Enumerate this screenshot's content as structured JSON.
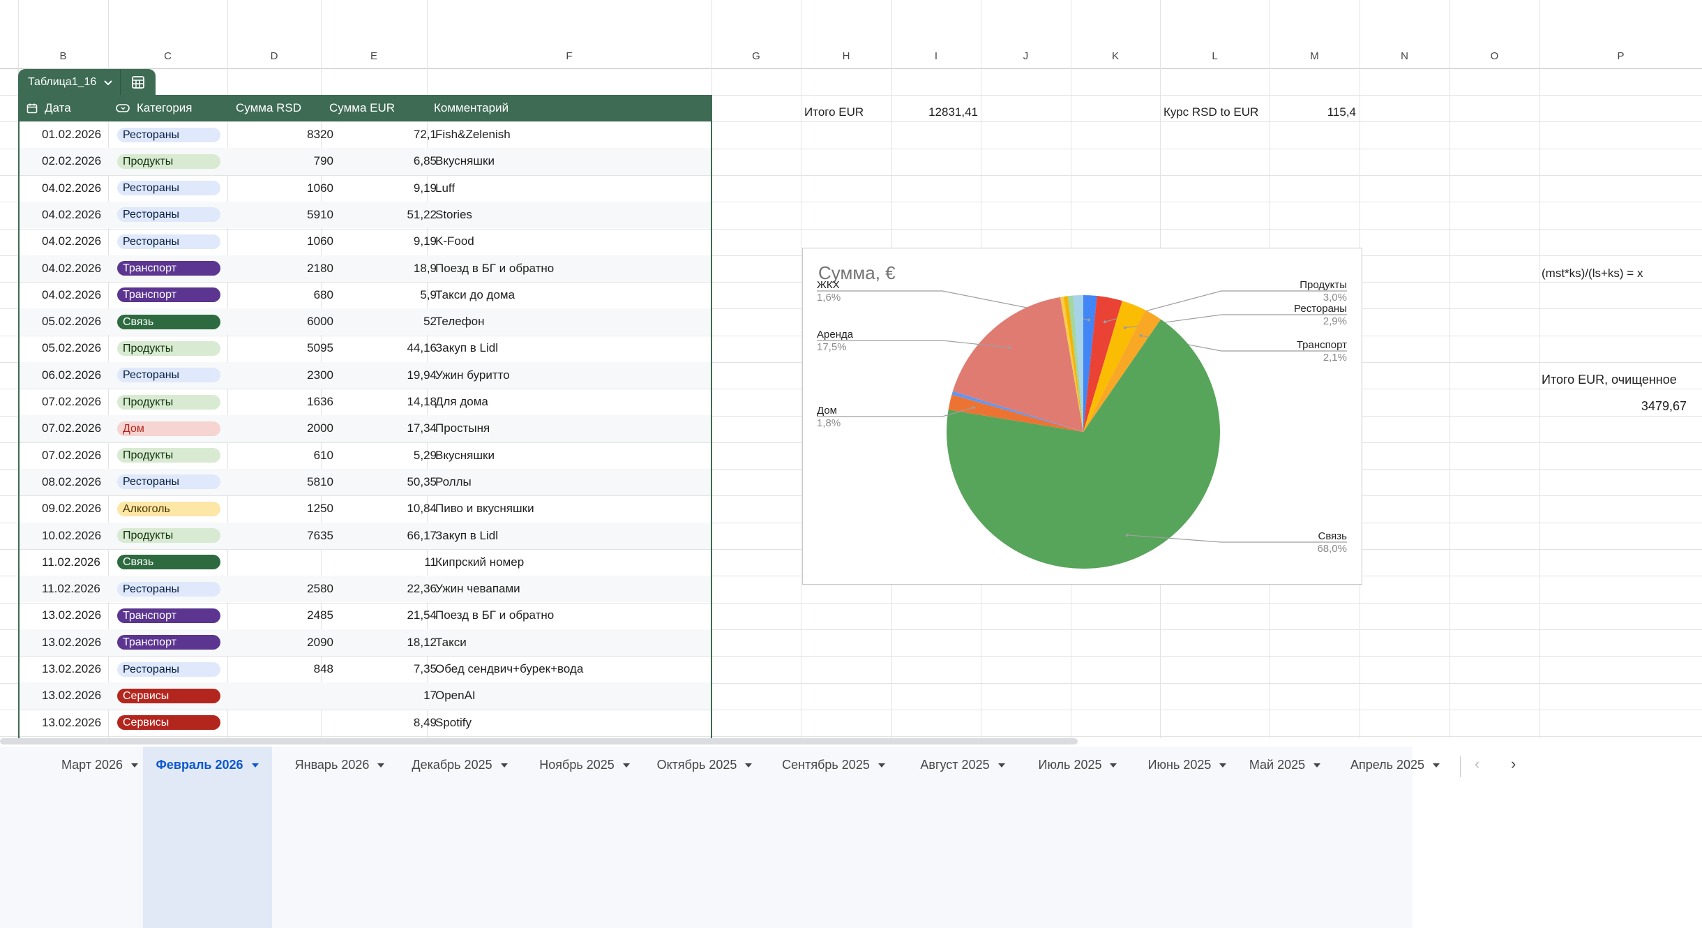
{
  "columns": [
    "B",
    "C",
    "D",
    "E",
    "F",
    "G",
    "H",
    "I",
    "J",
    "K",
    "L",
    "M",
    "N",
    "O",
    "P"
  ],
  "table": {
    "name": "Таблица1_16",
    "headers": {
      "date": "Дата",
      "category": "Категория",
      "rsd": "Сумма RSD",
      "eur": "Сумма EUR",
      "comment": "Комментарий"
    },
    "rows": [
      {
        "date": "01.02.2026",
        "category": "Рестораны",
        "rsd": "8320",
        "eur": "72,1",
        "comment": "Fish&Zelenish"
      },
      {
        "date": "02.02.2026",
        "category": "Продукты",
        "rsd": "790",
        "eur": "6,85",
        "comment": "Вкусняшки"
      },
      {
        "date": "04.02.2026",
        "category": "Рестораны",
        "rsd": "1060",
        "eur": "9,19",
        "comment": "Luff"
      },
      {
        "date": "04.02.2026",
        "category": "Рестораны",
        "rsd": "5910",
        "eur": "51,22",
        "comment": "Stories"
      },
      {
        "date": "04.02.2026",
        "category": "Рестораны",
        "rsd": "1060",
        "eur": "9,19",
        "comment": "K-Food"
      },
      {
        "date": "04.02.2026",
        "category": "Транспорт",
        "rsd": "2180",
        "eur": "18,9",
        "comment": "Поезд в БГ и обратно"
      },
      {
        "date": "04.02.2026",
        "category": "Транспорт",
        "rsd": "680",
        "eur": "5,9",
        "comment": "Такси до дома"
      },
      {
        "date": "05.02.2026",
        "category": "Связь",
        "rsd": "6000",
        "eur": "52",
        "comment": "Телефон"
      },
      {
        "date": "05.02.2026",
        "category": "Продукты",
        "rsd": "5095",
        "eur": "44,16",
        "comment": "Закуп в Lidl"
      },
      {
        "date": "06.02.2026",
        "category": "Рестораны",
        "rsd": "2300",
        "eur": "19,94",
        "comment": "Ужин буритто"
      },
      {
        "date": "07.02.2026",
        "category": "Продукты",
        "rsd": "1636",
        "eur": "14,18",
        "comment": "Для дома"
      },
      {
        "date": "07.02.2026",
        "category": "Дом",
        "rsd": "2000",
        "eur": "17,34",
        "comment": "Простыня"
      },
      {
        "date": "07.02.2026",
        "category": "Продукты",
        "rsd": "610",
        "eur": "5,29",
        "comment": "Вкусняшки"
      },
      {
        "date": "08.02.2026",
        "category": "Рестораны",
        "rsd": "5810",
        "eur": "50,35",
        "comment": "Роллы"
      },
      {
        "date": "09.02.2026",
        "category": "Алкоголь",
        "rsd": "1250",
        "eur": "10,84",
        "comment": "Пиво и вкусняшки"
      },
      {
        "date": "10.02.2026",
        "category": "Продукты",
        "rsd": "7635",
        "eur": "66,17",
        "comment": "Закуп в Lidl"
      },
      {
        "date": "11.02.2026",
        "category": "Связь",
        "rsd": "",
        "eur": "11",
        "comment": "Кипрский номер"
      },
      {
        "date": "11.02.2026",
        "category": "Рестораны",
        "rsd": "2580",
        "eur": "22,36",
        "comment": "Ужин чевапами"
      },
      {
        "date": "13.02.2026",
        "category": "Транспорт",
        "rsd": "2485",
        "eur": "21,54",
        "comment": "Поезд в БГ и обратно"
      },
      {
        "date": "13.02.2026",
        "category": "Транспорт",
        "rsd": "2090",
        "eur": "18,12",
        "comment": "Такси"
      },
      {
        "date": "13.02.2026",
        "category": "Рестораны",
        "rsd": "848",
        "eur": "7,35",
        "comment": " Обед сендвич+бурек+вода"
      },
      {
        "date": "13.02.2026",
        "category": "Сервисы",
        "rsd": "",
        "eur": "17",
        "comment": "OpenAI"
      },
      {
        "date": "13.02.2026",
        "category": "Сервисы",
        "rsd": "",
        "eur": "8,49",
        "comment": "Spotify"
      }
    ]
  },
  "category_colors": {
    "Рестораны": {
      "bg": "#dfe9fb",
      "fg": "#0a1f44"
    },
    "Продукты": {
      "bg": "#d9ead3",
      "fg": "#10330a"
    },
    "Транспорт": {
      "bg": "#5b3590",
      "fg": "#ffffff"
    },
    "Связь": {
      "bg": "#2e6a3f",
      "fg": "#ffffff"
    },
    "Дом": {
      "bg": "#f6d4d1",
      "fg": "#b3261e"
    },
    "Алкоголь": {
      "bg": "#fde7a6",
      "fg": "#473200"
    },
    "Сервисы": {
      "bg": "#b3261e",
      "fg": "#ffffff"
    }
  },
  "cells": {
    "total_label": "Итого EUR",
    "total_value": "12831,41",
    "rate_label": "Курс RSD to EUR",
    "rate_value": "115,4",
    "formula_note": "(mst*ks)/(ls+ks) = x",
    "clean_label": "Итого EUR, очищенное",
    "clean_value": "3479,67"
  },
  "chart_data": {
    "type": "pie",
    "title": "Сумма, €",
    "legend": "labels with leader lines",
    "slices": [
      {
        "label": "ЖКХ",
        "pct": "1,6%",
        "value": 1.6,
        "color": "#4285f4"
      },
      {
        "label": "Продукты",
        "pct": "3,0%",
        "value": 3.0,
        "color": "#ea4335"
      },
      {
        "label": "Рестораны",
        "pct": "2,9%",
        "value": 2.9,
        "color": "#fbbc04"
      },
      {
        "label": "Транспорт",
        "pct": "2,1%",
        "value": 2.1,
        "color": "#f9a825"
      },
      {
        "label": "Связь",
        "pct": "68,0%",
        "value": 68.0,
        "color": "#57a55a"
      },
      {
        "label": "Дом",
        "pct": "1,8%",
        "value": 1.8,
        "color": "#ed7333"
      },
      {
        "label": "",
        "pct": "",
        "value": 0.4,
        "color": "#5e97f6"
      },
      {
        "label": "Аренда",
        "pct": "17,5%",
        "value": 17.5,
        "color": "#e07b72"
      },
      {
        "label": "",
        "pct": "",
        "value": 0.4,
        "color": "#f7cb4d"
      },
      {
        "label": "",
        "pct": "",
        "value": 0.5,
        "color": "#f4b400"
      },
      {
        "label": "",
        "pct": "",
        "value": 0.6,
        "color": "#a3d6a0"
      },
      {
        "label": "",
        "pct": "",
        "value": 1.2,
        "color": "#a7d3e8"
      }
    ]
  },
  "sheet_tabs": [
    {
      "label": "Март 2026",
      "active": false
    },
    {
      "label": "Февраль 2026",
      "active": true
    },
    {
      "label": "Январь 2026",
      "active": false
    },
    {
      "label": "Декабрь 2025",
      "active": false
    },
    {
      "label": "Ноябрь 2025",
      "active": false
    },
    {
      "label": "Октябрь 2025",
      "active": false
    },
    {
      "label": "Сентябрь 2025",
      "active": false
    },
    {
      "label": "Август 2025",
      "active": false
    },
    {
      "label": "Июль 2025",
      "active": false
    },
    {
      "label": "Июнь 2025",
      "active": false
    },
    {
      "label": "Май 2025",
      "active": false
    },
    {
      "label": "Апрель 2025",
      "active": false
    }
  ],
  "tab_nav": {
    "prev": "‹",
    "next": "›"
  }
}
